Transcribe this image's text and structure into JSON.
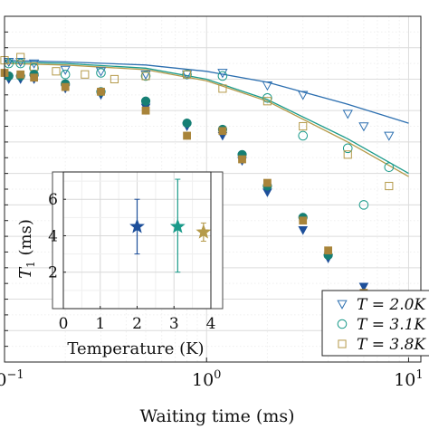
{
  "chart_data": [
    {
      "type": "scatter",
      "xlabel": "Waiting time (ms)",
      "ylabel": "",
      "xscale": "log",
      "xlim": [
        0.1,
        11.5
      ],
      "ylim": [
        0,
        1.1
      ],
      "grid": true,
      "x_ticks": [
        {
          "value": 0.1,
          "label": "10",
          "exp": "−1"
        },
        {
          "value": 1,
          "label": "10",
          "exp": "0"
        },
        {
          "value": 10,
          "label": "10",
          "exp": "1"
        }
      ],
      "legend": {
        "position": "bottom-right",
        "entries": [
          {
            "label": "T = 2.0K",
            "marker": "triangle-down-open",
            "color": "#2c6fb0"
          },
          {
            "label": "T = 3.1K",
            "marker": "circle-open",
            "color": "#1a9a8a"
          },
          {
            "label": "T = 3.8K",
            "marker": "square-open",
            "color": "#b59a4a"
          }
        ]
      },
      "series": [
        {
          "marker": "triangle-down-open",
          "color": "#2c6fb0",
          "points": [
            [
              0.105,
              0.955
            ],
            [
              0.12,
              0.955
            ],
            [
              0.14,
              0.95
            ],
            [
              0.2,
              0.93
            ],
            [
              0.3,
              0.925
            ],
            [
              0.5,
              0.915
            ],
            [
              0.8,
              0.915
            ],
            [
              1.2,
              0.92
            ],
            [
              2,
              0.88
            ],
            [
              3,
              0.85
            ],
            [
              5,
              0.79
            ],
            [
              6,
              0.75
            ],
            [
              8,
              0.72
            ]
          ]
        },
        {
          "marker": "circle-open",
          "color": "#1a9a8a",
          "points": [
            [
              0.105,
              0.95
            ],
            [
              0.12,
              0.95
            ],
            [
              0.14,
              0.935
            ],
            [
              0.2,
              0.915
            ],
            [
              0.3,
              0.92
            ],
            [
              0.5,
              0.91
            ],
            [
              0.8,
              0.915
            ],
            [
              1.2,
              0.91
            ],
            [
              2,
              0.84
            ],
            [
              3,
              0.72
            ],
            [
              5,
              0.68
            ],
            [
              6,
              0.5
            ],
            [
              8,
              0.62
            ]
          ]
        },
        {
          "marker": "square-open",
          "color": "#b59a4a",
          "points": [
            [
              0.1,
              0.96
            ],
            [
              0.12,
              0.97
            ],
            [
              0.14,
              0.94
            ],
            [
              0.18,
              0.925
            ],
            [
              0.25,
              0.915
            ],
            [
              0.35,
              0.9
            ],
            [
              0.5,
              0.91
            ],
            [
              0.8,
              0.915
            ],
            [
              1.2,
              0.87
            ],
            [
              2,
              0.83
            ],
            [
              3,
              0.75
            ],
            [
              5,
              0.66
            ],
            [
              8,
              0.56
            ]
          ]
        },
        {
          "marker": "triangle-down-filled",
          "color": "#1d4f9a",
          "points": [
            [
              0.105,
              0.9
            ],
            [
              0.12,
              0.9
            ],
            [
              0.14,
              0.9
            ],
            [
              0.2,
              0.87
            ],
            [
              0.3,
              0.85
            ],
            [
              0.5,
              0.81
            ],
            [
              0.8,
              0.75
            ],
            [
              1.2,
              0.72
            ],
            [
              1.5,
              0.64
            ],
            [
              2,
              0.54
            ],
            [
              3,
              0.42
            ],
            [
              4,
              0.33
            ],
            [
              6,
              0.24
            ],
            [
              8,
              0.19
            ],
            [
              10,
              0.14
            ]
          ]
        },
        {
          "marker": "circle-filled",
          "color": "#157f74",
          "points": [
            [
              0.105,
              0.91
            ],
            [
              0.12,
              0.91
            ],
            [
              0.14,
              0.915
            ],
            [
              0.2,
              0.885
            ],
            [
              0.3,
              0.86
            ],
            [
              0.5,
              0.83
            ],
            [
              0.8,
              0.76
            ],
            [
              1.2,
              0.74
            ],
            [
              1.5,
              0.66
            ],
            [
              2,
              0.56
            ],
            [
              3,
              0.46
            ],
            [
              4,
              0.34
            ],
            [
              6,
              0.21
            ],
            [
              8,
              0.18
            ]
          ]
        },
        {
          "marker": "square-filled",
          "color": "#a8843a",
          "points": [
            [
              0.1,
              0.92
            ],
            [
              0.12,
              0.915
            ],
            [
              0.14,
              0.905
            ],
            [
              0.2,
              0.875
            ],
            [
              0.3,
              0.86
            ],
            [
              0.5,
              0.8
            ],
            [
              0.8,
              0.72
            ],
            [
              1.2,
              0.735
            ],
            [
              1.5,
              0.645
            ],
            [
              2,
              0.57
            ],
            [
              3,
              0.45
            ],
            [
              4,
              0.355
            ],
            [
              6,
              0.22
            ],
            [
              8,
              0.165
            ],
            [
              10,
              0.1
            ]
          ]
        }
      ],
      "fit_curves": [
        {
          "color": "#2c6fb0",
          "x": [
            0.1,
            0.2,
            0.5,
            1,
            2,
            5,
            10
          ],
          "y": [
            0.96,
            0.955,
            0.945,
            0.925,
            0.89,
            0.82,
            0.76
          ]
        },
        {
          "color": "#1a9a8a",
          "x": [
            0.1,
            0.2,
            0.5,
            1,
            2,
            5,
            10
          ],
          "y": [
            0.955,
            0.95,
            0.935,
            0.9,
            0.835,
            0.71,
            0.6
          ]
        },
        {
          "color": "#b59a4a",
          "x": [
            0.1,
            0.2,
            0.5,
            1,
            2,
            5,
            10
          ],
          "y": [
            0.95,
            0.945,
            0.93,
            0.895,
            0.83,
            0.7,
            0.59
          ]
        }
      ]
    },
    {
      "type": "scatter",
      "role": "inset",
      "xlabel": "Temperature (K)",
      "ylabel": "T1 (ms)",
      "xlim": [
        0,
        4
      ],
      "ylim": [
        0,
        7.5
      ],
      "grid": true,
      "x_ticks": [
        "0",
        "1",
        "2",
        "3",
        "4"
      ],
      "y_ticks": [
        "2",
        "4",
        "6"
      ],
      "points": [
        {
          "x": 2.0,
          "y": 4.5,
          "yerr_low": 3.0,
          "yerr_high": 6.0,
          "color": "#1d4f9a",
          "marker": "star"
        },
        {
          "x": 3.1,
          "y": 4.5,
          "yerr_low": 2.0,
          "yerr_high": 7.1,
          "color": "#1a9a8a",
          "marker": "star"
        },
        {
          "x": 3.8,
          "y": 4.2,
          "yerr_low": 3.7,
          "yerr_high": 4.7,
          "color": "#b59a4a",
          "marker": "star"
        }
      ]
    }
  ]
}
